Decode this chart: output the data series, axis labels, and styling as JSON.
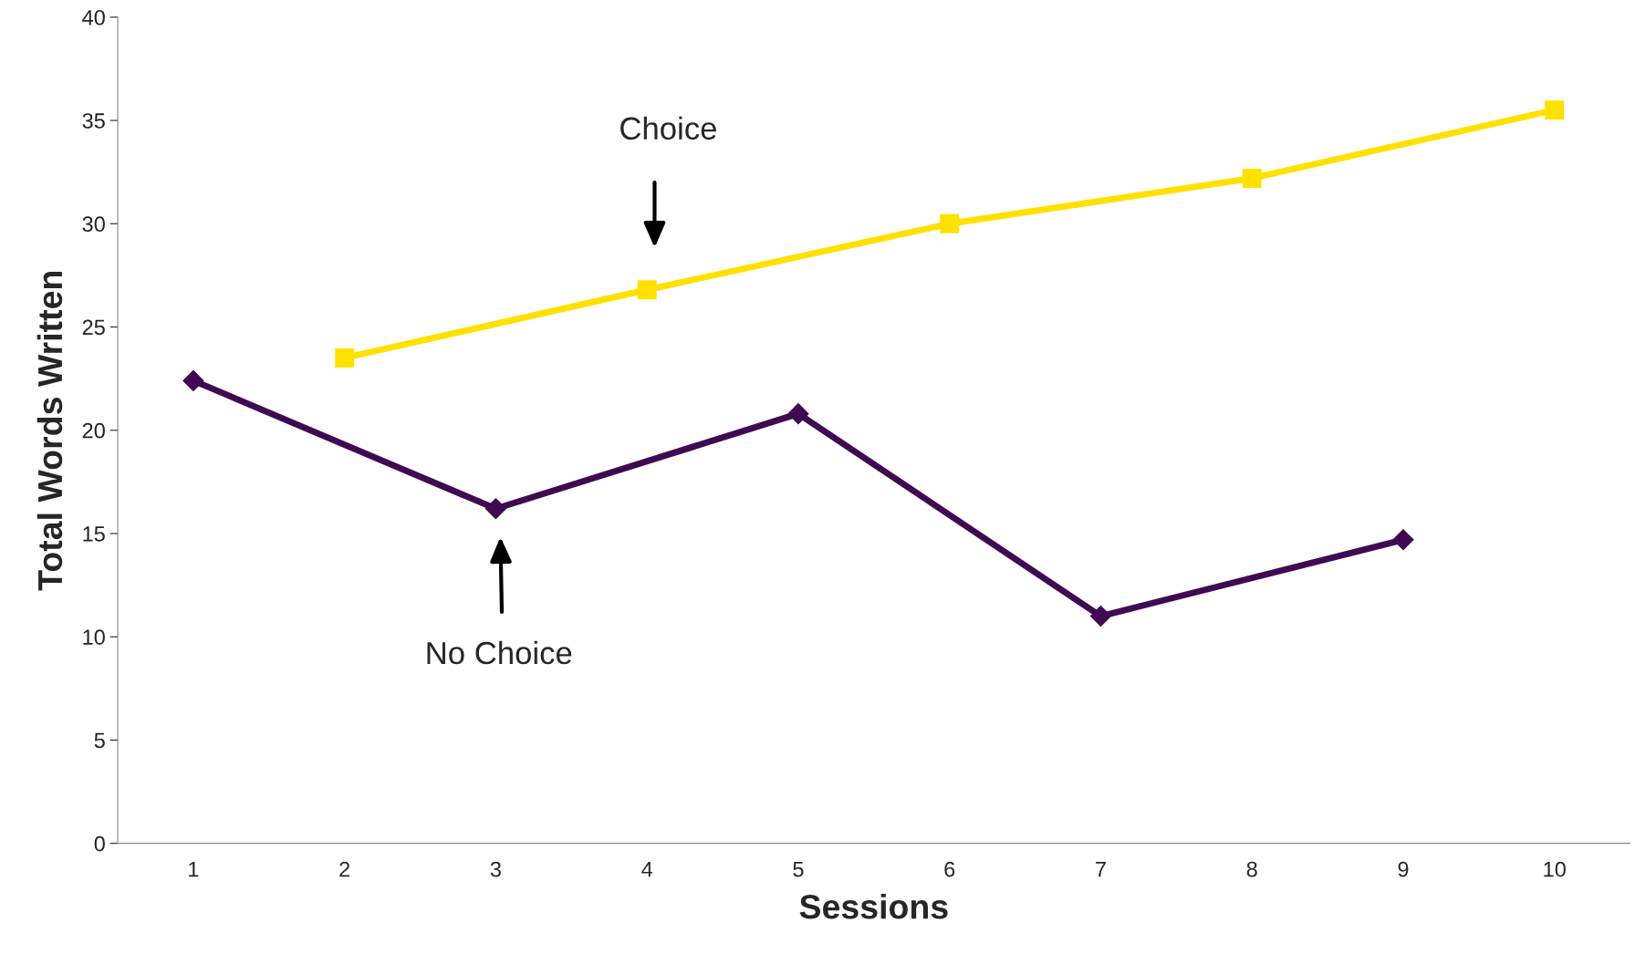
{
  "chart_data": {
    "type": "line",
    "xlabel": "Sessions",
    "ylabel": "Total Words Written",
    "categories": [
      "1",
      "2",
      "3",
      "4",
      "5",
      "6",
      "7",
      "8",
      "9",
      "10"
    ],
    "series": [
      {
        "color": "#3f0a52",
        "marker": "diamond",
        "values": [
          22.4,
          null,
          16.2,
          null,
          20.8,
          null,
          11.0,
          null,
          14.7,
          null
        ]
      },
      {
        "color": "#ffe100",
        "marker": "square",
        "values": [
          null,
          23.5,
          null,
          26.8,
          null,
          30.0,
          null,
          32.2,
          null,
          35.5
        ]
      }
    ],
    "ylim": [
      0,
      40
    ],
    "yticks": [
      0,
      5,
      10,
      15,
      20,
      25,
      30,
      35,
      40
    ],
    "grid": false,
    "legend": false,
    "annotations": [
      "Choice",
      "No Choice"
    ]
  }
}
